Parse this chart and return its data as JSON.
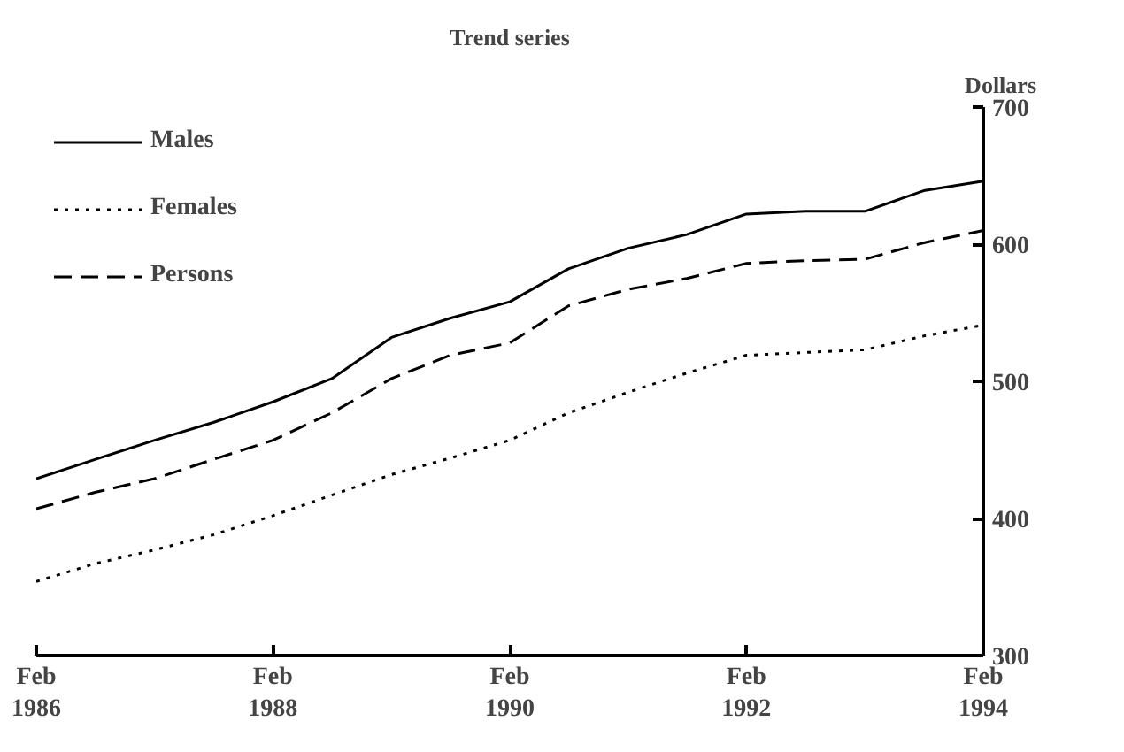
{
  "chart_data": {
    "type": "line",
    "title": "Trend series",
    "ylabel": "Dollars",
    "x": [
      "1986-02",
      "1986-08",
      "1987-02",
      "1987-08",
      "1988-02",
      "1988-08",
      "1989-02",
      "1989-08",
      "1990-02",
      "1990-08",
      "1991-02",
      "1991-08",
      "1992-02",
      "1992-08",
      "1993-02",
      "1993-08",
      "1994-02"
    ],
    "series": [
      {
        "name": "Males",
        "color": "#000000",
        "line_style": "solid",
        "values": [
          429,
          443,
          457,
          470,
          485,
          502,
          532,
          546,
          558,
          582,
          597,
          607,
          622,
          624,
          624,
          639,
          646
        ]
      },
      {
        "name": "Females",
        "color": "#000000",
        "line_style": "dotted",
        "values": [
          354,
          367,
          377,
          388,
          402,
          417,
          432,
          444,
          457,
          477,
          492,
          506,
          519,
          521,
          523,
          533,
          541
        ]
      },
      {
        "name": "Persons",
        "color": "#000000",
        "line_style": "dashed",
        "values": [
          407,
          419,
          429,
          443,
          457,
          477,
          502,
          519,
          528,
          555,
          567,
          575,
          586,
          588,
          589,
          601,
          610
        ]
      }
    ],
    "xlim": [
      "1986-02",
      "1994-02"
    ],
    "xticks": [
      {
        "value": "1986-02",
        "label": "Feb\n1986"
      },
      {
        "value": "1988-02",
        "label": "Feb\n1988"
      },
      {
        "value": "1990-02",
        "label": "Feb\n1990"
      },
      {
        "value": "1992-02",
        "label": "Feb\n1992"
      },
      {
        "value": "1994-02",
        "label": "Feb\n1994"
      }
    ],
    "ylim": [
      300,
      700
    ],
    "yticks": [
      300,
      400,
      500,
      600,
      700
    ],
    "grid": false,
    "legend": "top left"
  }
}
